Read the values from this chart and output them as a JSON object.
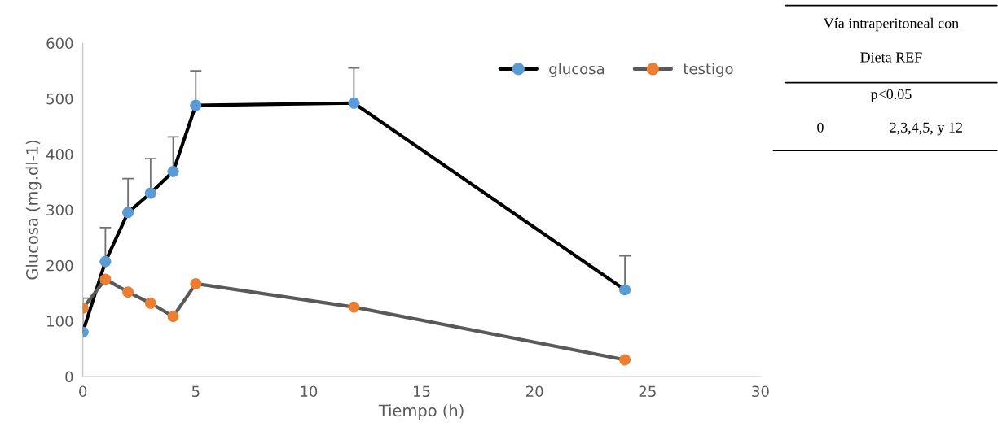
{
  "chart_data": {
    "type": "line",
    "xlabel": "Tiempo (h)",
    "ylabel": "Glucosa (mg.dl-1)",
    "x": [
      0,
      1,
      2,
      3,
      4,
      5,
      12,
      24
    ],
    "series": [
      {
        "name": "glucosa",
        "color": "#000000",
        "colors": [
          "#5b9bd5",
          "#5b9bd5",
          "#5b9bd5",
          "#5b9bd5",
          "#5b9bd5",
          "#5b9bd5",
          "#5b9bd5",
          "#5b9bd5"
        ],
        "values": [
          80,
          207,
          295,
          330,
          369,
          488,
          492,
          156
        ],
        "errors": [
          [
            80,
            141
          ],
          [
            207,
            268
          ],
          [
            295,
            356
          ],
          [
            330,
            392
          ],
          [
            369,
            431
          ],
          [
            488,
            550
          ],
          [
            492,
            555
          ],
          [
            156,
            217
          ]
        ]
      },
      {
        "name": "testigo",
        "color": "#595959",
        "colors": [
          "#ed7d31",
          "#ed7d31",
          "#ed7d31",
          "#ed7d31",
          "#ed7d31",
          "#ed7d31",
          "#ed7d31",
          "#ed7d31"
        ],
        "values": [
          123,
          175,
          152,
          132,
          108,
          167,
          125,
          30
        ]
      }
    ],
    "xlim": [
      0,
      30
    ],
    "xticks": [
      0,
      5,
      10,
      15,
      20,
      25,
      30
    ],
    "ylim": [
      0,
      600
    ],
    "yticks": [
      0,
      100,
      200,
      300,
      400,
      500,
      600
    ],
    "grid": false,
    "legend": "top right",
    "marker": "circle",
    "line_style": "solid",
    "annotations": [
      "Vía intraperitoneal con",
      "Dieta REF",
      "p<0.05",
      "0",
      "2,3,4,5, y 12"
    ]
  }
}
